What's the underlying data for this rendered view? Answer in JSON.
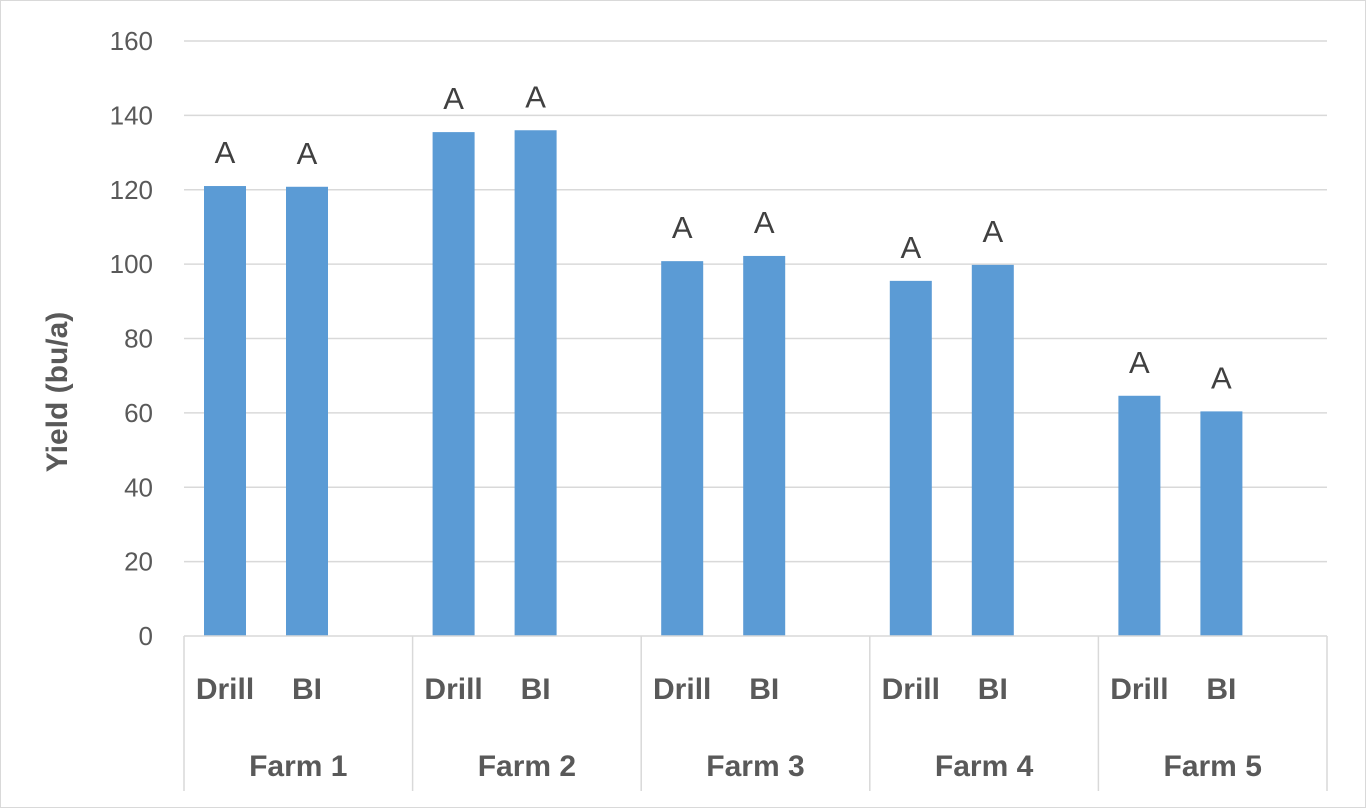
{
  "chart_data": {
    "type": "bar",
    "title": "",
    "ylabel": "Yield (bu/a)",
    "xlabel": "",
    "ylim": [
      0,
      160
    ],
    "yticks": [
      0,
      20,
      40,
      60,
      80,
      100,
      120,
      140,
      160
    ],
    "grid": true,
    "legend": "none",
    "bar_color": "#5b9bd5",
    "groups": [
      {
        "name": "Farm 1",
        "bars": [
          {
            "category": "Drill",
            "value": 121,
            "label": "A"
          },
          {
            "category": "BI",
            "value": 120.8,
            "label": "A"
          }
        ]
      },
      {
        "name": "Farm 2",
        "bars": [
          {
            "category": "Drill",
            "value": 135.5,
            "label": "A"
          },
          {
            "category": "BI",
            "value": 136,
            "label": "A"
          }
        ]
      },
      {
        "name": "Farm 3",
        "bars": [
          {
            "category": "Drill",
            "value": 100.8,
            "label": "A"
          },
          {
            "category": "BI",
            "value": 102.2,
            "label": "A"
          }
        ]
      },
      {
        "name": "Farm 4",
        "bars": [
          {
            "category": "Drill",
            "value": 95.5,
            "label": "A"
          },
          {
            "category": "BI",
            "value": 99.8,
            "label": "A"
          }
        ]
      },
      {
        "name": "Farm 5",
        "bars": [
          {
            "category": "Drill",
            "value": 64.6,
            "label": "A"
          },
          {
            "category": "BI",
            "value": 60.4,
            "label": "A"
          }
        ]
      }
    ]
  }
}
